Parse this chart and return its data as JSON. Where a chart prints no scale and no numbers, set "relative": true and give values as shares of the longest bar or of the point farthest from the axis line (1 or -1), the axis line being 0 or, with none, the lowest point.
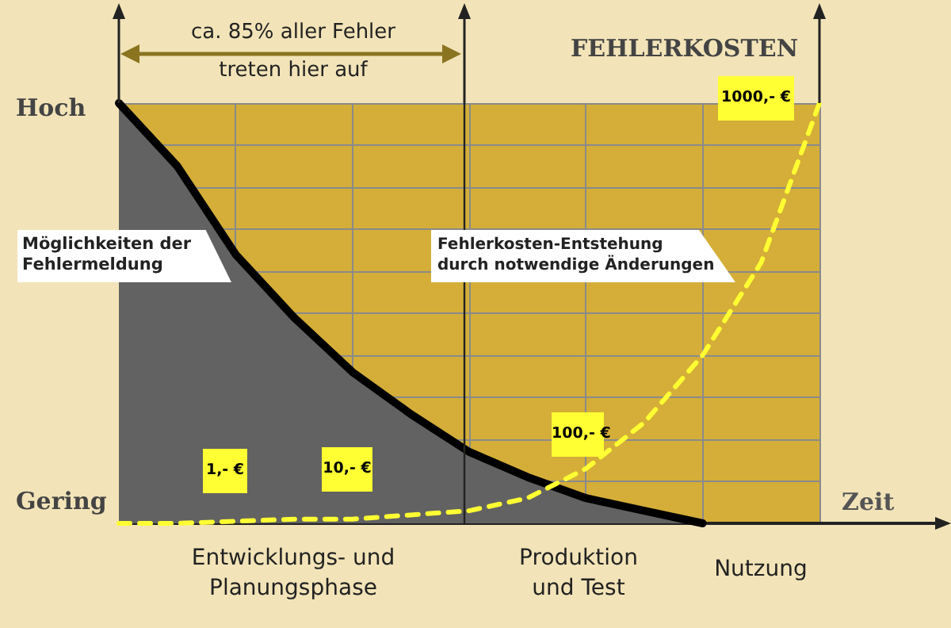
{
  "chart_data": {
    "type": "line",
    "title": "FEHLERKOSTEN",
    "xlabel": "Zeit",
    "relative": true,
    "grid": true,
    "categories": [
      null,
      null,
      null,
      null,
      null,
      null,
      null,
      null,
      null,
      null,
      null,
      null,
      null
    ],
    "series": [
      {
        "type": "area",
        "color": "#626262",
        "values": [
          1,
          0.85,
          0.64,
          0.49,
          0.36,
          0.26,
          0.17,
          0.11,
          0.06,
          0.03,
          0,
          null,
          null
        ]
      },
      {
        "color": "#ffff33",
        "line_style": "dashed",
        "values": [
          0,
          0,
          0.005,
          0.01,
          0.01,
          0.02,
          0.03,
          0.06,
          0.13,
          0.24,
          0.4,
          0.62,
          1
        ]
      }
    ],
    "annotations": [
      "Hoch",
      "Gering",
      "ca. 85% aller Fehler treten hier auf",
      "Möglichkeiten der Fehlermeldung",
      "Fehlerkosten-Entstehung durch notwendige Änderungen",
      "Entwicklungs- und Planungsphase",
      "Produktion und Test",
      "Nutzung",
      "1,- €",
      "10,- €",
      "100,- €",
      "1000,- €"
    ]
  }
}
